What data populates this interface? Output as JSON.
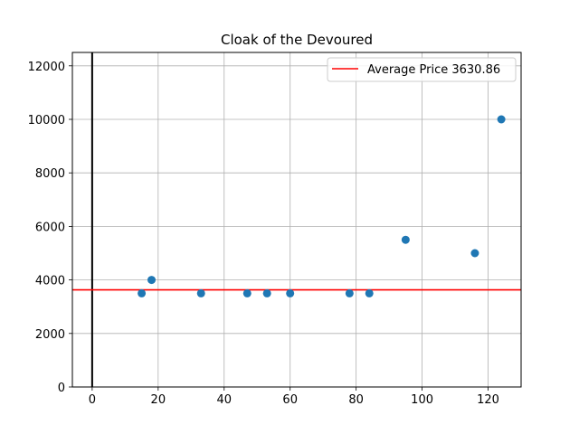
{
  "chart_data": {
    "type": "scatter",
    "title": "Cloak of the Devoured",
    "xlabel": "",
    "ylabel": "",
    "xlim": [
      -6,
      130
    ],
    "ylim": [
      0,
      12500
    ],
    "xticks": [
      0,
      20,
      40,
      60,
      80,
      100,
      120
    ],
    "yticks": [
      0,
      2000,
      4000,
      6000,
      8000,
      10000,
      12000
    ],
    "grid": true,
    "series": [
      {
        "color": "#1f77b4",
        "points": [
          {
            "x": 15,
            "y": 3500
          },
          {
            "x": 18,
            "y": 4000
          },
          {
            "x": 33,
            "y": 3500
          },
          {
            "x": 47,
            "y": 3500
          },
          {
            "x": 53,
            "y": 3500
          },
          {
            "x": 60,
            "y": 3500
          },
          {
            "x": 78,
            "y": 3500
          },
          {
            "x": 84,
            "y": 3500
          },
          {
            "x": 95,
            "y": 5500
          },
          {
            "x": 116,
            "y": 5000
          },
          {
            "x": 124,
            "y": 10000
          }
        ]
      }
    ],
    "hline": {
      "y": 3630.86,
      "color": "#ff0000",
      "label": "Average Price 3630.86"
    },
    "vline": {
      "x": 0,
      "color": "#000000"
    },
    "legend_position": "top-right"
  }
}
